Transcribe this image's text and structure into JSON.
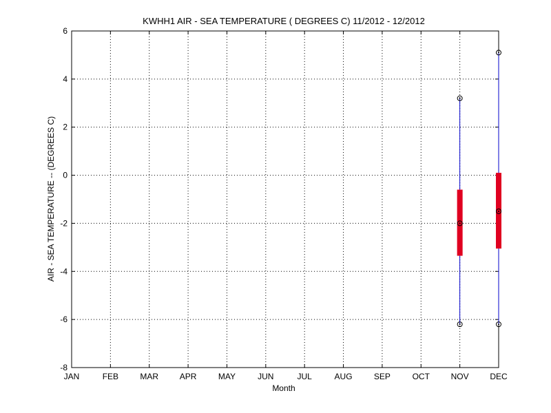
{
  "chart_data": {
    "type": "boxplot",
    "title": "KWHH1  AIR - SEA TEMPERATURE ( DEGREES C) 11/2012 - 12/2012",
    "xlabel": "Month",
    "ylabel": "AIR - SEA TEMPERATURE -- (DEGREES C)",
    "categories": [
      "JAN",
      "FEB",
      "MAR",
      "APR",
      "MAY",
      "JUN",
      "JUL",
      "AUG",
      "SEP",
      "OCT",
      "NOV",
      "DEC"
    ],
    "ylim": [
      -8,
      6
    ],
    "yticks": [
      -8,
      -6,
      -4,
      -2,
      0,
      2,
      4,
      6
    ],
    "grid": true,
    "boxes": [
      {
        "category": "NOV",
        "min": -6.2,
        "q1": -3.35,
        "median": -2.0,
        "q3": -0.6,
        "max": 3.2
      },
      {
        "category": "DEC",
        "min": -6.2,
        "q1": -3.05,
        "median": -1.5,
        "q3": 0.1,
        "max": 5.1
      }
    ],
    "colors": {
      "whisker": "#0000cc",
      "box": "#e00020",
      "marker": "#000000",
      "grid": "#000000"
    }
  }
}
